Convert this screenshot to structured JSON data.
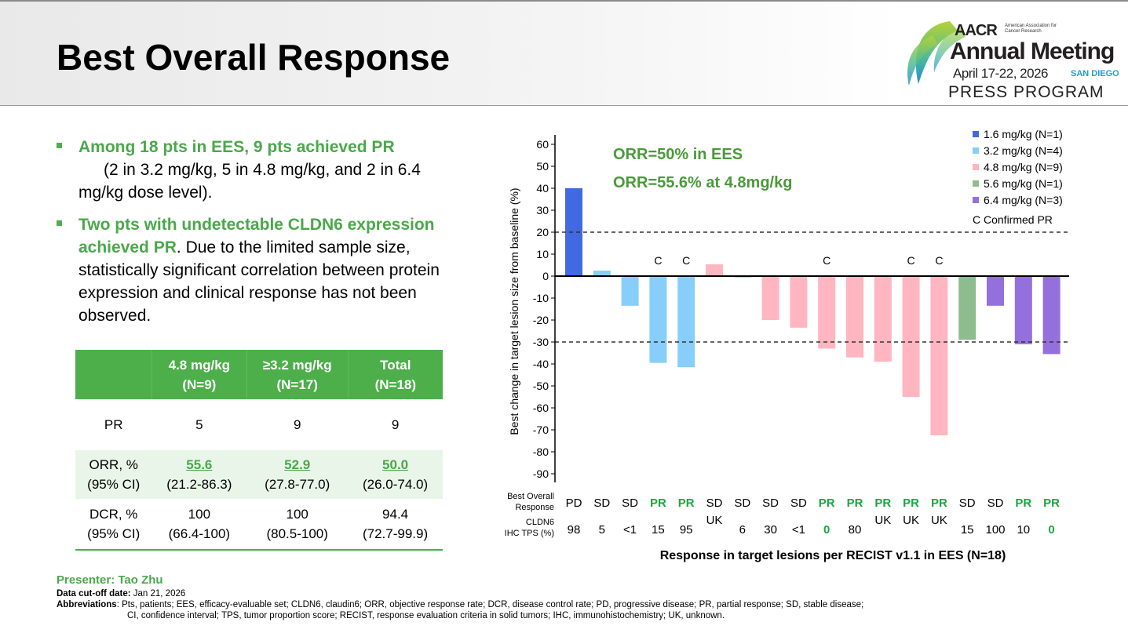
{
  "header": {
    "title": "Best Overall Response"
  },
  "logo": {
    "org": "AACR",
    "org_full": "American Association for Cancer Research",
    "event": "Annual Meeting",
    "dates": "April 17-22, 2026",
    "location": "SAN DIEGO",
    "program": "PRESS PROGRAM"
  },
  "bullets": [
    {
      "highlight": "Among 18 pts in EES, 9 pts achieved PR",
      "text": "(2 in 3.2 mg/kg, 5 in 4.8 mg/kg, and 2 in 6.4 mg/kg dose level)."
    },
    {
      "highlight": "Two pts with undetectable CLDN6 expression achieved PR",
      "text": ". Due to the limited sample size, statistically significant correlation between protein expression and clinical response has not been observed."
    }
  ],
  "table": {
    "headers": [
      [
        "",
        ""
      ],
      [
        "4.8 mg/kg",
        "(N=9)"
      ],
      [
        "≥3.2 mg/kg",
        "(N=17)"
      ],
      [
        "Total",
        "(N=18)"
      ]
    ],
    "rows": [
      {
        "label": [
          "PR",
          ""
        ],
        "cells": [
          [
            "5",
            ""
          ],
          [
            "9",
            ""
          ],
          [
            "9",
            ""
          ]
        ]
      },
      {
        "label": [
          "ORR, %",
          "(95% CI)"
        ],
        "cells": [
          [
            "55.6",
            "(21.2-86.3)"
          ],
          [
            "52.9",
            "(27.8-77.0)"
          ],
          [
            "50.0",
            "(26.0-74.0)"
          ]
        ]
      },
      {
        "label": [
          "DCR, %",
          "(95% CI)"
        ],
        "cells": [
          [
            "100",
            "(66.4-100)"
          ],
          [
            "100",
            "(80.5-100)"
          ],
          [
            "94.4",
            "(72.7-99.9)"
          ]
        ]
      }
    ]
  },
  "footer": {
    "presenter": "Presenter: Tao Zhu",
    "cutoff_label": "Data cut-off date:",
    "cutoff": " Jan 21, 2026",
    "abbr_label": "Abbreviations",
    "abbr1": ": Pts, patients; EES, efficacy-evaluable set; CLDN6, claudin6; ORR, objective response rate; DCR, disease control rate; PD, progressive disease; PR, partial response; SD, stable disease;",
    "abbr2": "CI, confidence interval; TPS, tumor proportion score; RECIST, response evaluation criteria in solid tumors; IHC, immunohistochemistry; UK, unknown."
  },
  "chart_data": {
    "type": "bar",
    "ylabel": "Best change in target lesion size from baseline (%)",
    "xlabel": "Response in target lesions per RECIST v1.1 in EES (N=18)",
    "ylim": [
      -90,
      60
    ],
    "yticks": [
      60,
      50,
      40,
      30,
      20,
      10,
      0,
      -10,
      -20,
      -30,
      -40,
      -50,
      -60,
      -70,
      -80,
      -90
    ],
    "reference_lines": [
      20,
      -30
    ],
    "annotations": [
      "ORR=50% in EES",
      "ORR=55.6% at 4.8mg/kg"
    ],
    "row_labels": {
      "response": [
        "Best Overall",
        "Response"
      ],
      "tps": [
        "CLDN6",
        "IHC TPS (%)"
      ]
    },
    "legend_position": "top-right",
    "confirmed_label": "C Confirmed PR",
    "confirmed_marker": "C",
    "groups": [
      {
        "name": "1.6 mg/kg (N=1)",
        "color": "#4169e1"
      },
      {
        "name": "3.2 mg/kg (N=4)",
        "color": "#87cefa"
      },
      {
        "name": "4.8 mg/kg (N=9)",
        "color": "#ffb6c1"
      },
      {
        "name": "5.6 mg/kg (N=1)",
        "color": "#8fbc8f"
      },
      {
        "name": "6.4 mg/kg (N=3)",
        "color": "#9370db"
      }
    ],
    "bars": [
      {
        "value": 40,
        "group": 0,
        "response": "PD",
        "tps": "98",
        "confirmed": false
      },
      {
        "value": 2.5,
        "group": 1,
        "response": "SD",
        "tps": "5",
        "confirmed": false
      },
      {
        "value": -13.5,
        "group": 1,
        "response": "SD",
        "tps": "<1",
        "confirmed": false
      },
      {
        "value": -39.5,
        "group": 1,
        "response": "PR",
        "tps": "15",
        "confirmed": true
      },
      {
        "value": -41.5,
        "group": 1,
        "response": "PR",
        "tps": "95",
        "confirmed": true
      },
      {
        "value": 5.4,
        "group": 2,
        "response": "SD",
        "tps": "UK",
        "confirmed": false
      },
      {
        "value": -0.7,
        "group": 2,
        "response": "SD",
        "tps": "6",
        "confirmed": false
      },
      {
        "value": -20,
        "group": 2,
        "response": "SD",
        "tps": "30",
        "confirmed": false
      },
      {
        "value": -23.5,
        "group": 2,
        "response": "SD",
        "tps": "<1",
        "confirmed": false
      },
      {
        "value": -33,
        "group": 2,
        "response": "PR",
        "tps": "0",
        "confirmed": true
      },
      {
        "value": -37,
        "group": 2,
        "response": "PR",
        "tps": "80",
        "confirmed": false
      },
      {
        "value": -39,
        "group": 2,
        "response": "PR",
        "tps": "UK",
        "confirmed": false
      },
      {
        "value": -55,
        "group": 2,
        "response": "PR",
        "tps": "UK",
        "confirmed": true
      },
      {
        "value": -72.5,
        "group": 2,
        "response": "PR",
        "tps": "UK",
        "confirmed": true
      },
      {
        "value": -29,
        "group": 3,
        "response": "SD",
        "tps": "15",
        "confirmed": false
      },
      {
        "value": -13.5,
        "group": 4,
        "response": "SD",
        "tps": "100",
        "confirmed": false
      },
      {
        "value": -31,
        "group": 4,
        "response": "PR",
        "tps": "10",
        "confirmed": false
      },
      {
        "value": -35.5,
        "group": 4,
        "response": "PR",
        "tps": "0",
        "confirmed": false
      }
    ],
    "colors": {
      "pr_text": "#1aa640",
      "annotation": "#4a9a3a"
    }
  }
}
